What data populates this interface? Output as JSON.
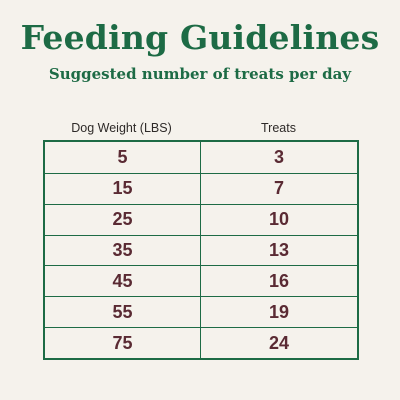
{
  "title": "Feeding Guidelines",
  "subtitle": "Suggested number of treats per day",
  "table": {
    "headers": [
      "Dog Weight (LBS)",
      "Treats"
    ],
    "rows": [
      [
        "5",
        "3"
      ],
      [
        "15",
        "7"
      ],
      [
        "25",
        "10"
      ],
      [
        "35",
        "13"
      ],
      [
        "45",
        "16"
      ],
      [
        "55",
        "19"
      ],
      [
        "75",
        "24"
      ]
    ]
  },
  "colors": {
    "heading": "#1d6b45",
    "cell_text": "#5a2a33",
    "background": "#f5f2ec"
  }
}
